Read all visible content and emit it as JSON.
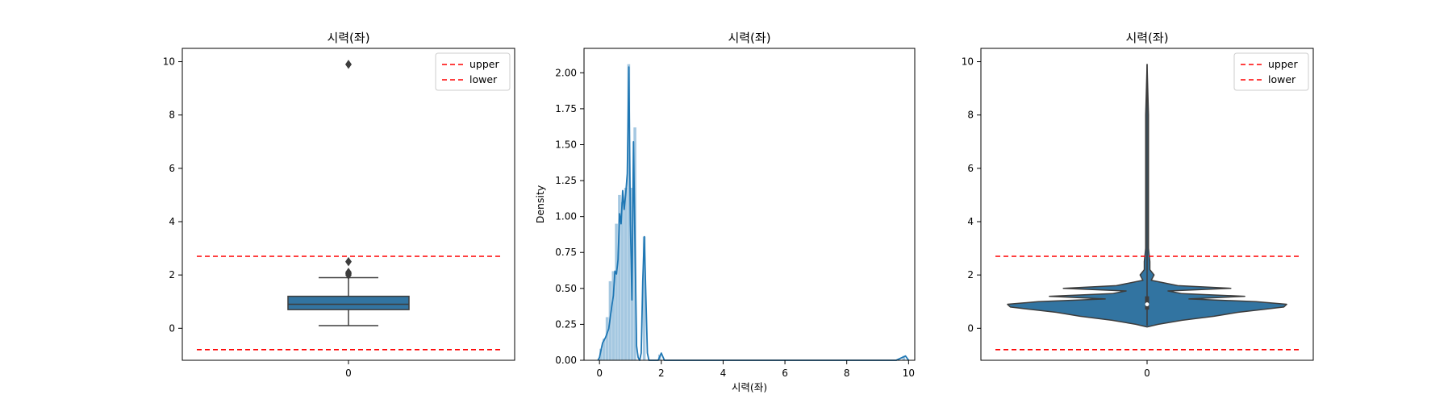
{
  "chart_data": [
    {
      "type": "box",
      "title": "시력(좌)",
      "xlabel": "",
      "ylabel": "",
      "xtick_labels": [
        "0"
      ],
      "yticks": [
        0,
        2,
        4,
        6,
        8,
        10
      ],
      "ylim": [
        -1.2,
        10.5
      ],
      "box": {
        "whisker_low": 0.1,
        "q1": 0.7,
        "median": 0.9,
        "q3": 1.2,
        "whisker_high": 1.9
      },
      "outliers": [
        2.0,
        2.05,
        2.1,
        2.5,
        9.9
      ],
      "reference_lines": [
        {
          "name": "upper",
          "value": 2.7,
          "color": "#ff0000",
          "style": "dashed"
        },
        {
          "name": "lower",
          "value": -0.8,
          "color": "#ff0000",
          "style": "dashed"
        }
      ],
      "legend": {
        "position": "top-right",
        "entries": [
          "upper",
          "lower"
        ]
      },
      "colors": {
        "box": "#3274a1",
        "edge": "#3d3d3d"
      }
    },
    {
      "type": "histogram",
      "title": "시력(좌)",
      "xlabel": "시력(좌)",
      "ylabel": "Density",
      "xticks": [
        0,
        2,
        4,
        6,
        8,
        10
      ],
      "yticks": [
        0.0,
        0.25,
        0.5,
        0.75,
        1.0,
        1.25,
        1.5,
        1.75,
        2.0
      ],
      "ytick_labels": [
        "0.00",
        "0.25",
        "0.50",
        "0.75",
        "1.00",
        "1.25",
        "1.50",
        "1.75",
        "2.00"
      ],
      "xlim": [
        -0.5,
        10.2
      ],
      "ylim": [
        0,
        2.17
      ],
      "bins": [
        {
          "x0": 0.0,
          "x1": 0.1,
          "density": 0.08
        },
        {
          "x0": 0.1,
          "x1": 0.2,
          "density": 0.15
        },
        {
          "x0": 0.2,
          "x1": 0.3,
          "density": 0.3
        },
        {
          "x0": 0.3,
          "x1": 0.4,
          "density": 0.55
        },
        {
          "x0": 0.4,
          "x1": 0.5,
          "density": 0.62
        },
        {
          "x0": 0.5,
          "x1": 0.6,
          "density": 0.95
        },
        {
          "x0": 0.6,
          "x1": 0.7,
          "density": 1.15
        },
        {
          "x0": 0.7,
          "x1": 0.8,
          "density": 1.1
        },
        {
          "x0": 0.8,
          "x1": 0.9,
          "density": 1.2
        },
        {
          "x0": 0.9,
          "x1": 1.0,
          "density": 2.06
        },
        {
          "x0": 1.0,
          "x1": 1.1,
          "density": 1.2
        },
        {
          "x0": 1.1,
          "x1": 1.2,
          "density": 1.62
        },
        {
          "x0": 1.4,
          "x1": 1.5,
          "density": 0.86
        },
        {
          "x0": 1.9,
          "x1": 2.0,
          "density": 0.04
        },
        {
          "x0": 9.8,
          "x1": 9.9,
          "density": 0.03
        }
      ],
      "kde": {
        "x": [
          -0.05,
          0.0,
          0.05,
          0.1,
          0.2,
          0.3,
          0.4,
          0.45,
          0.5,
          0.55,
          0.6,
          0.65,
          0.7,
          0.75,
          0.8,
          0.85,
          0.9,
          0.95,
          1.0,
          1.05,
          1.1,
          1.15,
          1.2,
          1.25,
          1.3,
          1.35,
          1.4,
          1.45,
          1.5,
          1.55,
          1.6,
          1.7,
          1.9,
          2.0,
          2.1,
          2.3,
          5.0,
          9.6,
          9.8,
          9.9,
          10.0
        ],
        "y": [
          0.0,
          0.02,
          0.07,
          0.12,
          0.16,
          0.22,
          0.38,
          0.45,
          0.62,
          0.6,
          0.7,
          1.02,
          0.95,
          1.18,
          1.05,
          1.16,
          1.3,
          2.04,
          0.95,
          0.42,
          1.52,
          0.8,
          0.1,
          0.02,
          0.0,
          0.05,
          0.55,
          0.86,
          0.45,
          0.05,
          0.0,
          0.0,
          0.0,
          0.05,
          0.0,
          0.0,
          0.0,
          0.0,
          0.02,
          0.03,
          0.0
        ]
      },
      "colors": {
        "bars": "#a5c8e1",
        "kde": "#1f77b4"
      }
    },
    {
      "type": "violin",
      "title": "시력(좌)",
      "xlabel": "",
      "ylabel": "",
      "xtick_labels": [
        "0"
      ],
      "yticks": [
        0,
        2,
        4,
        6,
        8,
        10
      ],
      "ylim": [
        -1.2,
        10.5
      ],
      "violin": {
        "y": [
          0.05,
          0.15,
          0.3,
          0.45,
          0.6,
          0.7,
          0.8,
          0.9,
          1.0,
          1.1,
          1.2,
          1.3,
          1.4,
          1.5,
          1.6,
          1.8,
          2.0,
          2.2,
          2.5,
          3.0,
          5.0,
          8.0,
          9.9
        ],
        "density": [
          0.0,
          0.08,
          0.25,
          0.48,
          0.65,
          0.82,
          0.98,
          1.0,
          0.78,
          0.3,
          0.7,
          0.25,
          0.15,
          0.6,
          0.22,
          0.03,
          0.05,
          0.02,
          0.02,
          0.01,
          0.01,
          0.01,
          0.0
        ],
        "max_half_width_units": 0.42
      },
      "inner_box": {
        "whisker_low": 0.1,
        "q1": 0.7,
        "median": 0.9,
        "q3": 1.2,
        "whisker_high": 9.9
      },
      "reference_lines": [
        {
          "name": "upper",
          "value": 2.7,
          "color": "#ff0000",
          "style": "dashed"
        },
        {
          "name": "lower",
          "value": -0.8,
          "color": "#ff0000",
          "style": "dashed"
        }
      ],
      "legend": {
        "position": "top-right",
        "entries": [
          "upper",
          "lower"
        ]
      },
      "colors": {
        "body": "#3274a1",
        "edge": "#3d3d3d"
      }
    }
  ]
}
